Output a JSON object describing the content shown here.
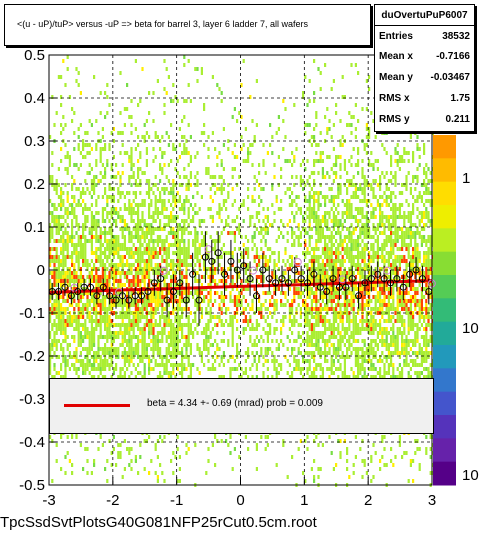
{
  "title": "<(u - uP)/tuP> versus  -uP => beta for barrel 3, layer 6 ladder 7, all wafers",
  "stats": {
    "name": "duOvertuPuP6007",
    "rows": [
      {
        "label": "Entries",
        "value": "38532"
      },
      {
        "label": "Mean x",
        "value": "-0.7166"
      },
      {
        "label": "Mean y",
        "value": "-0.03467"
      },
      {
        "label": "RMS x",
        "value": "1.75"
      },
      {
        "label": "RMS y",
        "value": "0.211"
      }
    ]
  },
  "legend": {
    "fit_label": "beta =    4.34 +-  0.69 (mrad) prob = 0.009",
    "fit_color": "#e00000"
  },
  "footer": "TpcSsdSvtPlotsG40G081NFP25rCut0.5cm.root",
  "colors": {
    "fit": "#e00000",
    "points": "#000000",
    "open_markers": "#d080d0",
    "heat_low": "#aaee33",
    "heat_mid": "#ffee00",
    "heat_high": "#ff4400"
  },
  "chart_data": {
    "type": "scatter",
    "xlim": [
      -3,
      3
    ],
    "ylim": [
      -0.5,
      0.5
    ],
    "x_ticks": [
      -3,
      -2,
      -1,
      0,
      1,
      2,
      3
    ],
    "y_ticks": [
      -0.5,
      -0.4,
      -0.3,
      -0.2,
      -0.1,
      0,
      0.1,
      0.2,
      0.3,
      0.4,
      0.5
    ],
    "colorbar_ticks": [
      "1",
      "10",
      "10"
    ],
    "grid": true,
    "fit_line": {
      "x": [
        -3,
        -2,
        -1,
        0,
        1,
        2,
        3
      ],
      "y": [
        -0.052,
        -0.047,
        -0.043,
        -0.038,
        -0.034,
        -0.029,
        -0.025
      ]
    },
    "profile_points": {
      "x": [
        -2.95,
        -2.85,
        -2.75,
        -2.65,
        -2.55,
        -2.45,
        -2.35,
        -2.25,
        -2.15,
        -2.05,
        -1.95,
        -1.85,
        -1.75,
        -1.65,
        -1.55,
        -1.45,
        -1.35,
        -1.25,
        -1.15,
        -1.05,
        -0.95,
        -0.85,
        -0.75,
        -0.65,
        -0.55,
        -0.45,
        -0.35,
        -0.25,
        -0.15,
        -0.05,
        0.05,
        0.15,
        0.25,
        0.35,
        0.45,
        0.55,
        0.65,
        0.75,
        0.85,
        0.95,
        1.05,
        1.15,
        1.25,
        1.35,
        1.45,
        1.55,
        1.65,
        1.75,
        1.85,
        1.95,
        2.05,
        2.15,
        2.25,
        2.35,
        2.45,
        2.55,
        2.65,
        2.75,
        2.85,
        2.95
      ],
      "y": [
        -0.05,
        -0.05,
        -0.04,
        -0.06,
        -0.05,
        -0.04,
        -0.04,
        -0.06,
        -0.04,
        -0.06,
        -0.07,
        -0.06,
        -0.07,
        -0.06,
        -0.06,
        -0.05,
        -0.03,
        -0.02,
        -0.07,
        -0.05,
        -0.03,
        -0.07,
        -0.01,
        -0.07,
        0.03,
        0.02,
        0.04,
        -0.01,
        0.02,
        0.0,
        0.01,
        -0.02,
        -0.06,
        0.0,
        -0.02,
        -0.03,
        -0.02,
        -0.03,
        0.0,
        -0.02,
        -0.03,
        -0.01,
        -0.04,
        -0.05,
        -0.02,
        -0.04,
        -0.04,
        -0.02,
        -0.06,
        -0.03,
        -0.02,
        -0.01,
        -0.02,
        -0.03,
        -0.02,
        -0.04,
        -0.01,
        0.0,
        -0.02,
        -0.05
      ],
      "err": [
        0.02,
        0.02,
        0.02,
        0.02,
        0.02,
        0.02,
        0.02,
        0.02,
        0.02,
        0.02,
        0.02,
        0.02,
        0.02,
        0.02,
        0.02,
        0.02,
        0.03,
        0.03,
        0.04,
        0.04,
        0.03,
        0.04,
        0.05,
        0.06,
        0.06,
        0.05,
        0.05,
        0.05,
        0.05,
        0.04,
        0.04,
        0.04,
        0.04,
        0.04,
        0.03,
        0.03,
        0.03,
        0.03,
        0.03,
        0.03,
        0.03,
        0.03,
        0.03,
        0.03,
        0.03,
        0.03,
        0.03,
        0.03,
        0.03,
        0.03,
        0.03,
        0.03,
        0.03,
        0.03,
        0.03,
        0.03,
        0.03,
        0.03,
        0.03,
        0.03
      ]
    }
  }
}
